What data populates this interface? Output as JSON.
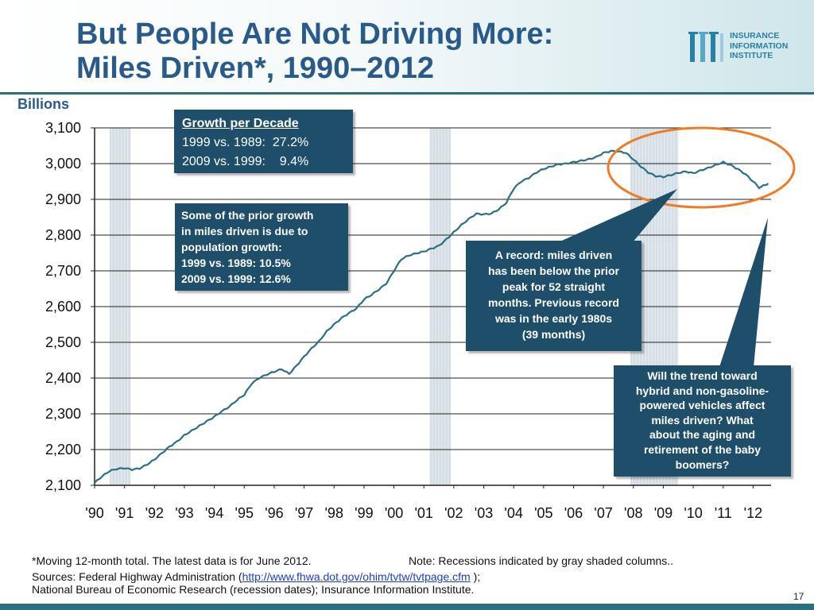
{
  "slide": {
    "title_line1": "But People Are Not Driving More:",
    "title_line2": "Miles Driven*, 1990–2012",
    "page_number": "17"
  },
  "logo": {
    "line1": "INSURANCE",
    "line2": "INFORMATION",
    "line3": "INSTITUTE"
  },
  "chart_data": {
    "type": "line",
    "title": "Miles Driven*, 1990–2012",
    "ylabel": "Billions",
    "xlabel": "",
    "ylim": [
      2100,
      3100
    ],
    "yticks": [
      3100,
      3000,
      2900,
      2800,
      2700,
      2600,
      2500,
      2400,
      2300,
      2200,
      2100
    ],
    "ytick_labels": [
      "3,100",
      "3,000",
      "2,900",
      "2,800",
      "2,700",
      "2,600",
      "2,500",
      "2,400",
      "2,300",
      "2,200",
      "2,100"
    ],
    "xlim": [
      1990,
      2012.6
    ],
    "xtick_labels": [
      "'90",
      "'91",
      "'92",
      "'93",
      "'94",
      "'95",
      "'96",
      "'97",
      "'98",
      "'99",
      "'00",
      "'01",
      "'02",
      "'03",
      "'04",
      "'05",
      "'06",
      "'07",
      "'08",
      "'09",
      "'10",
      "'11",
      "'12"
    ],
    "gridlines": true,
    "recessions": [
      [
        1990.5,
        1991.2
      ],
      [
        2001.2,
        2001.9
      ],
      [
        2007.9,
        2009.5
      ]
    ],
    "series": [
      {
        "name": "Miles Driven (moving 12-month total)",
        "color": "#2a6e88",
        "x": [
          1990.0,
          1990.25,
          1990.5,
          1990.75,
          1991.0,
          1991.25,
          1991.5,
          1991.75,
          1992.0,
          1992.25,
          1992.5,
          1992.75,
          1993.0,
          1993.25,
          1993.5,
          1993.75,
          1994.0,
          1994.25,
          1994.5,
          1994.75,
          1995.0,
          1995.25,
          1995.5,
          1995.75,
          1996.0,
          1996.25,
          1996.5,
          1996.75,
          1997.0,
          1997.25,
          1997.5,
          1997.75,
          1998.0,
          1998.25,
          1998.5,
          1998.75,
          1999.0,
          1999.25,
          1999.5,
          1999.75,
          2000.0,
          2000.25,
          2000.5,
          2000.75,
          2001.0,
          2001.25,
          2001.5,
          2001.75,
          2002.0,
          2002.25,
          2002.5,
          2002.75,
          2003.0,
          2003.25,
          2003.5,
          2003.75,
          2004.0,
          2004.25,
          2004.5,
          2004.75,
          2005.0,
          2005.25,
          2005.5,
          2005.75,
          2006.0,
          2006.25,
          2006.5,
          2006.75,
          2007.0,
          2007.25,
          2007.5,
          2007.75,
          2008.0,
          2008.25,
          2008.5,
          2008.75,
          2009.0,
          2009.25,
          2009.5,
          2009.75,
          2010.0,
          2010.25,
          2010.5,
          2010.75,
          2011.0,
          2011.25,
          2011.5,
          2011.75,
          2012.0,
          2012.2,
          2012.4,
          2012.5
        ],
        "values": [
          2107,
          2125,
          2140,
          2146,
          2148,
          2144,
          2147,
          2158,
          2172,
          2190,
          2208,
          2222,
          2240,
          2253,
          2266,
          2279,
          2292,
          2307,
          2320,
          2338,
          2353,
          2385,
          2400,
          2410,
          2418,
          2425,
          2412,
          2435,
          2460,
          2483,
          2503,
          2530,
          2550,
          2568,
          2582,
          2595,
          2620,
          2633,
          2648,
          2665,
          2700,
          2733,
          2743,
          2749,
          2754,
          2762,
          2770,
          2788,
          2808,
          2828,
          2845,
          2860,
          2858,
          2860,
          2872,
          2890,
          2930,
          2950,
          2960,
          2975,
          2985,
          2992,
          2998,
          3000,
          3004,
          3008,
          3012,
          3018,
          3030,
          3035,
          3034,
          3030,
          3012,
          2992,
          2975,
          2965,
          2963,
          2968,
          2974,
          2978,
          2973,
          2981,
          2988,
          2996,
          3004,
          2996,
          2984,
          2970,
          2950,
          2933,
          2940,
          2945
        ]
      }
    ]
  },
  "callouts": {
    "growth": {
      "heading": "Growth per Decade",
      "rows": [
        "1999 vs. 1989:  27.2%",
        "2009 vs. 1999:    9.4%"
      ]
    },
    "population": [
      "Some of the prior growth",
      "in miles driven is due to",
      "population growth:",
      "1999 vs. 1989:  10.5%",
      "2009 vs. 1999:  12.6%"
    ],
    "record": [
      "A record: miles driven",
      "has been below the prior",
      "peak for 52 straight",
      "months. Previous record",
      "was in the early 1980s",
      "(39 months)"
    ],
    "trend": [
      "Will the trend toward",
      "hybrid and non-gasoline-",
      "powered vehicles affect",
      "miles driven? What",
      "about the aging and",
      "retirement of the baby",
      "boomers?"
    ]
  },
  "footnotes": {
    "note_left": "*Moving 12-month total. The latest data is for June 2012.",
    "note_right": "Note: Recessions indicated by gray shaded columns..",
    "sources_prefix": "Sources:  Federal Highway Administration (",
    "sources_link": "http://www.fhwa.dot.gov/ohim/tvtw/tvtpage.cfm",
    "sources_suffix": " );",
    "sources_line2": "National Bureau of Economic Research (recession dates); Insurance Information Institute."
  },
  "colors": {
    "title": "#2a5a8a",
    "line": "#2a6e88",
    "callout_bg": "#1f4e6b",
    "highlight_ellipse": "#f07b24",
    "recession": "#d3dde3"
  }
}
